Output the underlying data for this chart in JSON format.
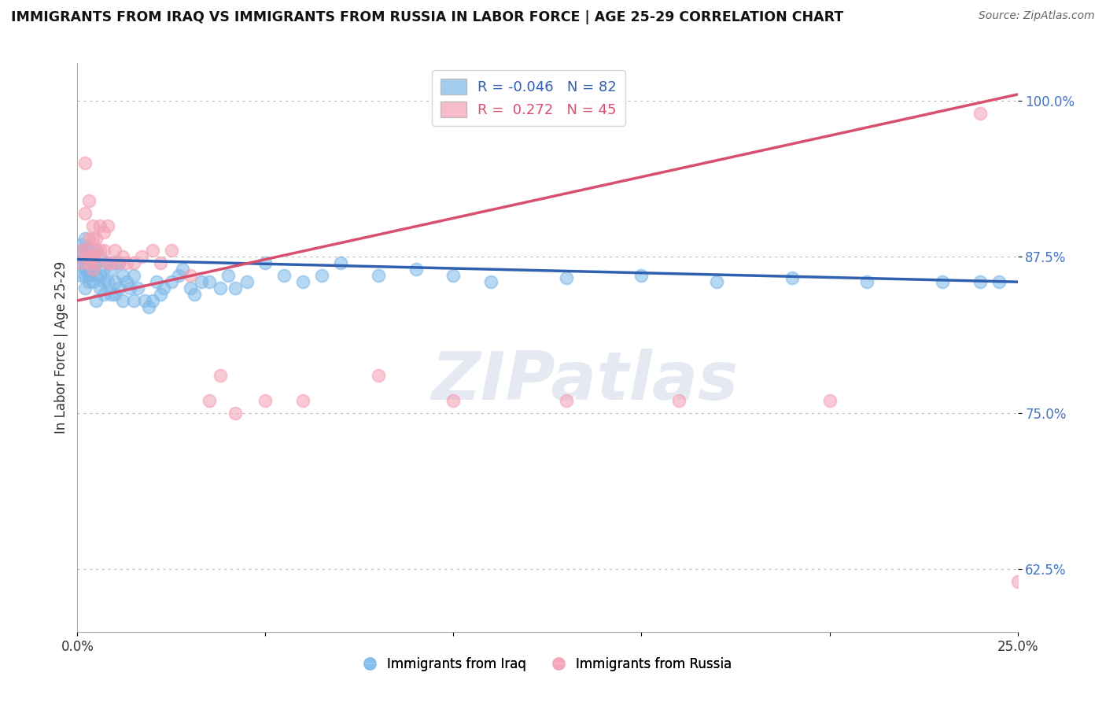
{
  "title": "IMMIGRANTS FROM IRAQ VS IMMIGRANTS FROM RUSSIA IN LABOR FORCE | AGE 25-29 CORRELATION CHART",
  "source": "Source: ZipAtlas.com",
  "ylabel": "In Labor Force | Age 25-29",
  "xmin": 0.0,
  "xmax": 0.25,
  "ymin": 0.575,
  "ymax": 1.03,
  "yticks": [
    0.625,
    0.75,
    0.875,
    1.0
  ],
  "ytick_labels": [
    "62.5%",
    "75.0%",
    "87.5%",
    "100.0%"
  ],
  "xticks": [
    0.0,
    0.05,
    0.1,
    0.15,
    0.2,
    0.25
  ],
  "xtick_labels": [
    "0.0%",
    "",
    "",
    "",
    "",
    "25.0%"
  ],
  "iraq_color": "#7db8e8",
  "russia_color": "#f4a0b5",
  "iraq_line_color": "#3060b0",
  "russia_line_color": "#d85070",
  "iraq_R": -0.046,
  "iraq_N": 82,
  "russia_R": 0.272,
  "russia_N": 45,
  "legend_label_iraq": "Immigrants from Iraq",
  "legend_label_russia": "Immigrants from Russia",
  "iraq_x": [
    0.001,
    0.001,
    0.001,
    0.001,
    0.001,
    0.002,
    0.002,
    0.002,
    0.002,
    0.002,
    0.002,
    0.002,
    0.003,
    0.003,
    0.003,
    0.003,
    0.003,
    0.003,
    0.004,
    0.004,
    0.004,
    0.004,
    0.005,
    0.005,
    0.005,
    0.005,
    0.006,
    0.006,
    0.006,
    0.007,
    0.007,
    0.007,
    0.008,
    0.008,
    0.009,
    0.009,
    0.01,
    0.01,
    0.01,
    0.011,
    0.011,
    0.012,
    0.012,
    0.013,
    0.014,
    0.015,
    0.015,
    0.016,
    0.018,
    0.019,
    0.02,
    0.021,
    0.022,
    0.023,
    0.025,
    0.027,
    0.028,
    0.03,
    0.031,
    0.033,
    0.035,
    0.038,
    0.04,
    0.042,
    0.045,
    0.05,
    0.055,
    0.06,
    0.065,
    0.07,
    0.08,
    0.09,
    0.1,
    0.11,
    0.13,
    0.15,
    0.17,
    0.19,
    0.21,
    0.23,
    0.24,
    0.245
  ],
  "iraq_y": [
    0.875,
    0.88,
    0.87,
    0.885,
    0.86,
    0.875,
    0.88,
    0.865,
    0.87,
    0.89,
    0.86,
    0.85,
    0.87,
    0.88,
    0.875,
    0.86,
    0.865,
    0.855,
    0.87,
    0.865,
    0.875,
    0.855,
    0.88,
    0.87,
    0.86,
    0.84,
    0.86,
    0.875,
    0.85,
    0.865,
    0.855,
    0.845,
    0.87,
    0.855,
    0.865,
    0.845,
    0.87,
    0.855,
    0.845,
    0.87,
    0.85,
    0.86,
    0.84,
    0.855,
    0.85,
    0.86,
    0.84,
    0.85,
    0.84,
    0.835,
    0.84,
    0.855,
    0.845,
    0.85,
    0.855,
    0.86,
    0.865,
    0.85,
    0.845,
    0.855,
    0.855,
    0.85,
    0.86,
    0.85,
    0.855,
    0.87,
    0.86,
    0.855,
    0.86,
    0.87,
    0.86,
    0.865,
    0.86,
    0.855,
    0.858,
    0.86,
    0.855,
    0.858,
    0.855,
    0.855,
    0.855,
    0.855
  ],
  "russia_x": [
    0.001,
    0.001,
    0.002,
    0.002,
    0.002,
    0.003,
    0.003,
    0.003,
    0.003,
    0.004,
    0.004,
    0.004,
    0.004,
    0.005,
    0.005,
    0.005,
    0.006,
    0.006,
    0.007,
    0.007,
    0.008,
    0.008,
    0.009,
    0.01,
    0.011,
    0.012,
    0.013,
    0.015,
    0.017,
    0.02,
    0.022,
    0.025,
    0.03,
    0.035,
    0.038,
    0.042,
    0.05,
    0.06,
    0.08,
    0.1,
    0.13,
    0.16,
    0.2,
    0.24,
    0.25
  ],
  "russia_y": [
    0.88,
    0.87,
    0.91,
    0.88,
    0.95,
    0.89,
    0.875,
    0.92,
    0.87,
    0.89,
    0.875,
    0.9,
    0.865,
    0.89,
    0.88,
    0.87,
    0.9,
    0.88,
    0.895,
    0.88,
    0.9,
    0.87,
    0.87,
    0.88,
    0.87,
    0.875,
    0.87,
    0.87,
    0.875,
    0.88,
    0.87,
    0.88,
    0.86,
    0.76,
    0.78,
    0.75,
    0.76,
    0.76,
    0.78,
    0.76,
    0.76,
    0.76,
    0.76,
    0.99,
    0.615
  ],
  "watermark": "ZIPatlas",
  "background_color": "#ffffff",
  "iraq_line_x0": 0.0,
  "iraq_line_x1": 0.25,
  "iraq_line_y0": 0.873,
  "iraq_line_y1": 0.855,
  "russia_line_x0": 0.0,
  "russia_line_x1": 0.25,
  "russia_line_y0": 0.84,
  "russia_line_y1": 1.005
}
